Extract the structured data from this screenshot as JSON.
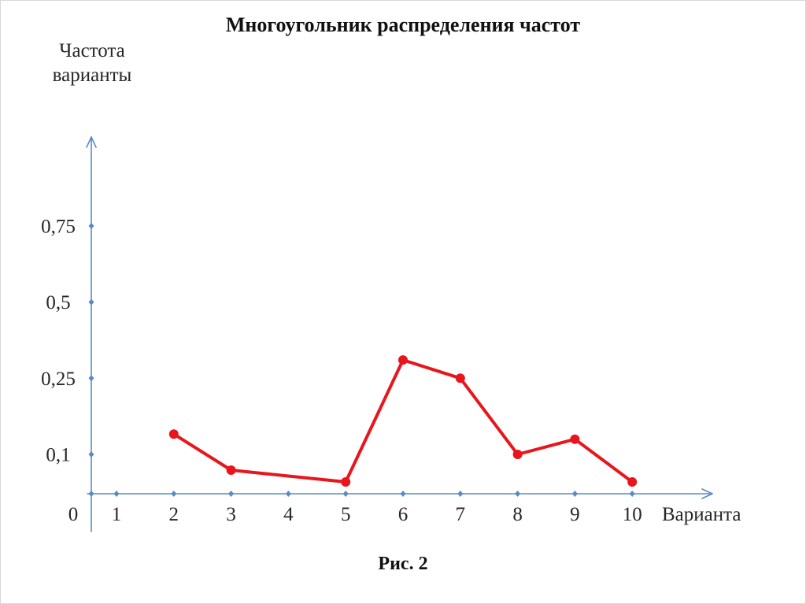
{
  "colors": {
    "background": "#ffffff",
    "axis": "#5a8ac6",
    "series": "#e8161c",
    "text": "#262626"
  },
  "chart_data": {
    "type": "line",
    "title": "Многоугольник распределения частот",
    "ylabel": "Частота\nварианты",
    "xlabel": "Варианта",
    "origin_label": "0",
    "x_tick_labels": [
      "1",
      "2",
      "3",
      "4",
      "5",
      "6",
      "7",
      "8",
      "9",
      "10"
    ],
    "y_tick_labels": [
      "0,1",
      "0,25",
      "0,5",
      "0,75"
    ],
    "xlim": [
      0,
      10
    ],
    "ylim": [
      0,
      0.75
    ],
    "grid": false,
    "legend": "none",
    "series": [
      {
        "marker": "circle",
        "x": [
          2,
          3,
          5,
          6,
          7,
          8,
          9,
          10
        ],
        "y": [
          0.14,
          0.06,
          0.03,
          0.31,
          0.25,
          0.1,
          0.13,
          0.03
        ]
      }
    ]
  },
  "caption": "Рис. 2"
}
